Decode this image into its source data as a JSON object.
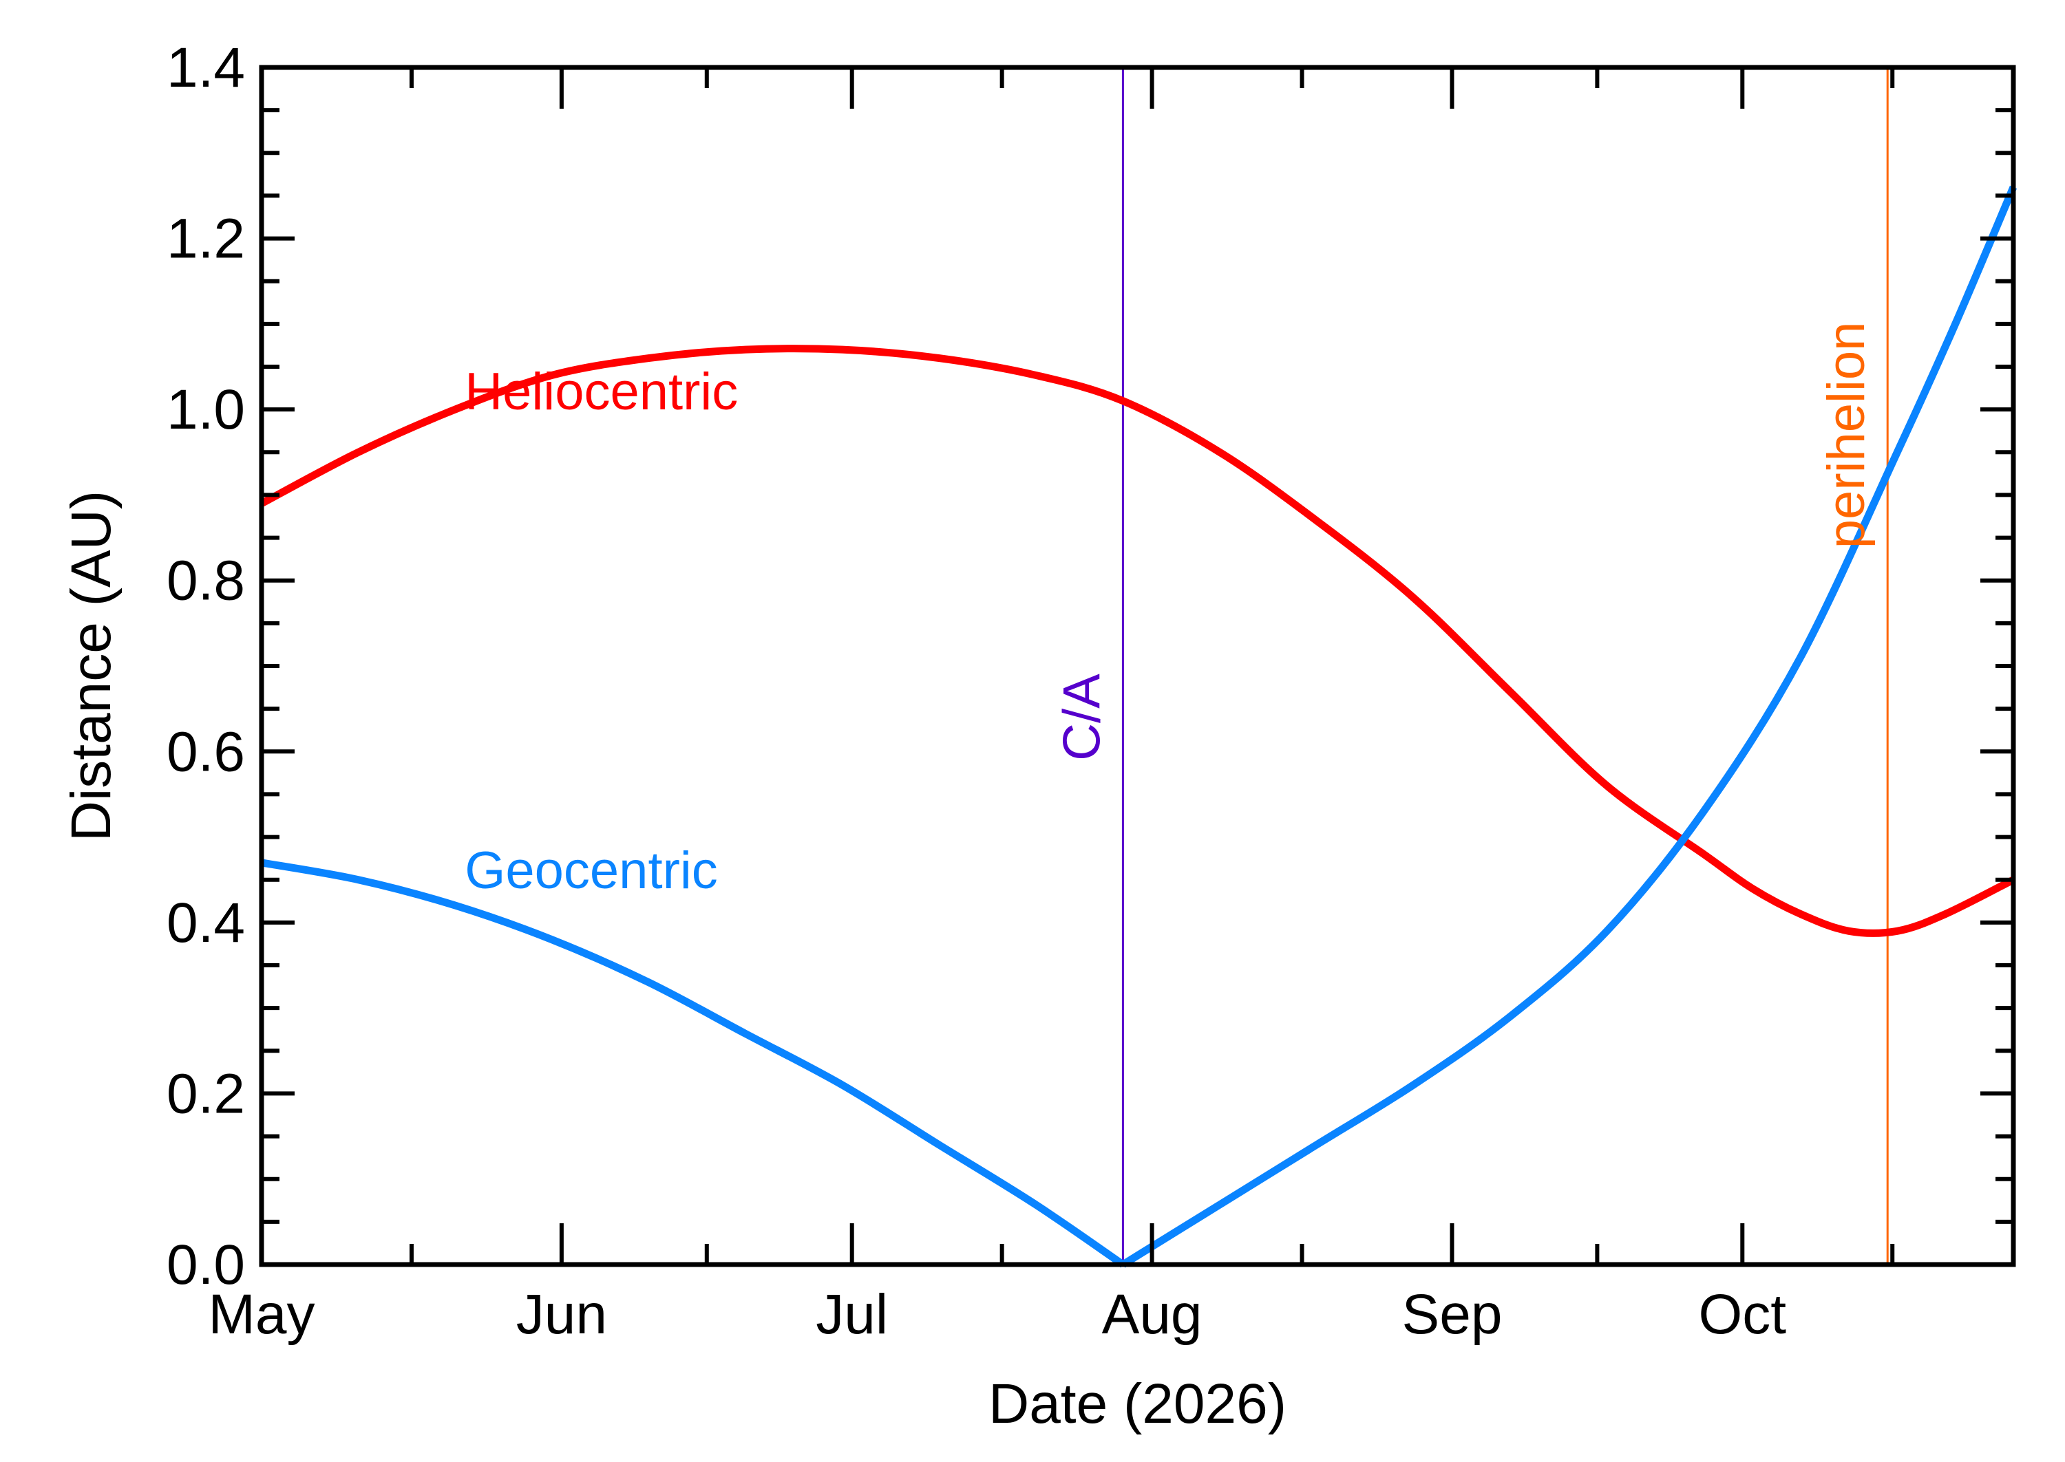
{
  "chart_data": {
    "type": "line",
    "title": "",
    "xlabel": "Date (2026)",
    "ylabel": "Distance (AU)",
    "xlim": [
      "2026-05-01",
      "2026-10-29"
    ],
    "ylim": [
      0.0,
      1.4
    ],
    "yticks": [
      {
        "value": 0.0,
        "label": "0.0"
      },
      {
        "value": 0.2,
        "label": "0.2"
      },
      {
        "value": 0.4,
        "label": "0.4"
      },
      {
        "value": 0.6,
        "label": "0.6"
      },
      {
        "value": 0.8,
        "label": "0.8"
      },
      {
        "value": 1.0,
        "label": "1.0"
      },
      {
        "value": 1.2,
        "label": "1.2"
      },
      {
        "value": 1.4,
        "label": "1.4"
      }
    ],
    "xticks": [
      {
        "date": "2026-05-01",
        "label": "May"
      },
      {
        "date": "2026-06-01",
        "label": "Jun"
      },
      {
        "date": "2026-07-01",
        "label": "Jul"
      },
      {
        "date": "2026-08-01",
        "label": "Aug"
      },
      {
        "date": "2026-09-01",
        "label": "Sep"
      },
      {
        "date": "2026-10-01",
        "label": "Oct"
      }
    ],
    "grid": false,
    "series": [
      {
        "name": "Heliocentric",
        "color": "#ff0000",
        "x": [
          "2026-05-01",
          "2026-05-11",
          "2026-05-21",
          "2026-05-31",
          "2026-06-10",
          "2026-06-20",
          "2026-06-30",
          "2026-07-10",
          "2026-07-20",
          "2026-07-29",
          "2026-08-08",
          "2026-08-18",
          "2026-08-28",
          "2026-09-07",
          "2026-09-17",
          "2026-09-27",
          "2026-10-02",
          "2026-10-07",
          "2026-10-12",
          "2026-10-17",
          "2026-10-22",
          "2026-10-29"
        ],
        "y": [
          0.89,
          0.95,
          1.0,
          1.04,
          1.06,
          1.07,
          1.07,
          1.06,
          1.04,
          1.01,
          0.95,
          0.87,
          0.78,
          0.67,
          0.56,
          0.48,
          0.44,
          0.41,
          0.39,
          0.39,
          0.41,
          0.45
        ]
      },
      {
        "name": "Geocentric",
        "color": "#0a84ff",
        "x": [
          "2026-05-01",
          "2026-05-11",
          "2026-05-21",
          "2026-05-31",
          "2026-06-10",
          "2026-06-20",
          "2026-06-30",
          "2026-07-10",
          "2026-07-20",
          "2026-07-29",
          "2026-08-08",
          "2026-08-18",
          "2026-08-28",
          "2026-09-07",
          "2026-09-17",
          "2026-09-27",
          "2026-10-07",
          "2026-10-17",
          "2026-10-23",
          "2026-10-29"
        ],
        "y": [
          0.47,
          0.45,
          0.42,
          0.38,
          0.33,
          0.27,
          0.21,
          0.14,
          0.07,
          0.0,
          0.07,
          0.14,
          0.21,
          0.29,
          0.39,
          0.53,
          0.71,
          0.95,
          1.1,
          1.26
        ]
      }
    ],
    "markers": [
      {
        "label": "C/A",
        "date": "2026-07-29",
        "color": "#5500cc"
      },
      {
        "label": "perihelion",
        "date": "2026-10-16",
        "color": "#ff6600"
      }
    ],
    "annotations": [
      {
        "text": "Heliocentric",
        "color": "#ff0000",
        "date": "2026-05-22",
        "value": 1.0
      },
      {
        "text": "Geocentric",
        "color": "#0a84ff",
        "date": "2026-05-22",
        "value": 0.44
      }
    ]
  }
}
